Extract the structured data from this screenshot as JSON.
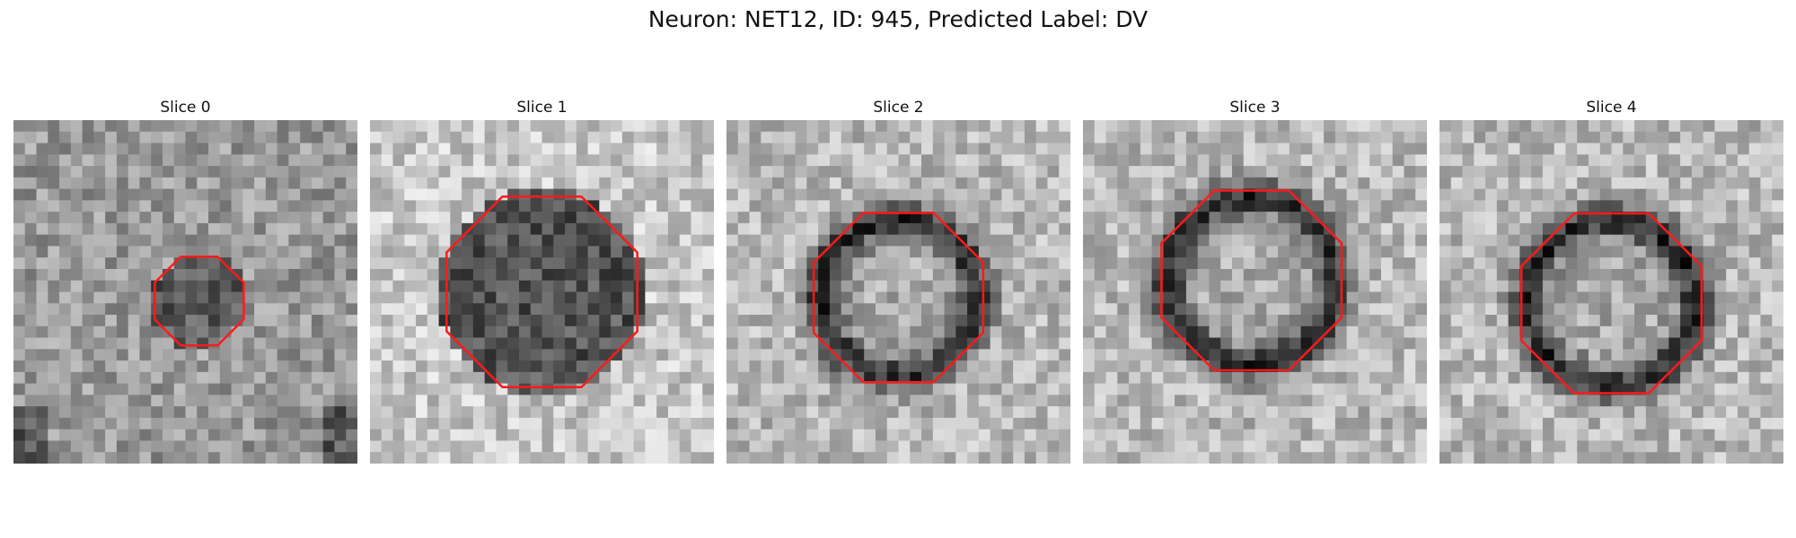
{
  "figure": {
    "title": "Neuron: NET12, ID: 945, Predicted Label: DV"
  },
  "outline_color": "#ff1a1a",
  "slices": [
    {
      "title": "Slice 0"
    },
    {
      "title": "Slice 1"
    },
    {
      "title": "Slice 2"
    },
    {
      "title": "Slice 3"
    },
    {
      "title": "Slice 4"
    }
  ]
}
